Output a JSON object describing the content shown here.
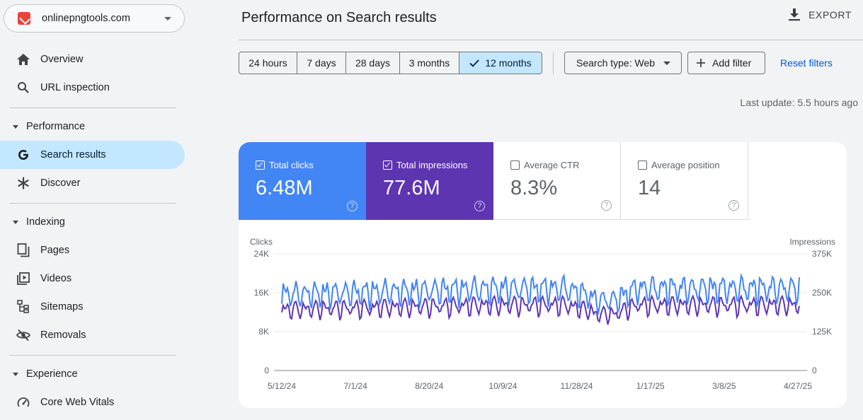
{
  "property": {
    "name": "onlinepngtools.com"
  },
  "sidebar": {
    "overview": "Overview",
    "url_inspection": "URL inspection",
    "performance_header": "Performance",
    "search_results": "Search results",
    "discover": "Discover",
    "indexing_header": "Indexing",
    "pages": "Pages",
    "videos": "Videos",
    "sitemaps": "Sitemaps",
    "removals": "Removals",
    "experience_header": "Experience",
    "core_web_vitals": "Core Web Vitals"
  },
  "header": {
    "title": "Performance on Search results",
    "export_label": "EXPORT"
  },
  "filters": {
    "ranges": [
      "24 hours",
      "7 days",
      "28 days",
      "3 months",
      "12 months"
    ],
    "selected_range": "12 months",
    "search_type": "Search type: Web",
    "add_filter": "Add filter",
    "reset": "Reset filters",
    "last_update": "Last update: 5.5 hours ago"
  },
  "metrics": {
    "clicks": {
      "label": "Total clicks",
      "value": "6.48M",
      "checked": true,
      "color": "#4285f4"
    },
    "impressions": {
      "label": "Total impressions",
      "value": "77.6M",
      "checked": true,
      "color": "#5e35b1"
    },
    "ctr": {
      "label": "Average CTR",
      "value": "8.3%",
      "checked": false
    },
    "position": {
      "label": "Average position",
      "value": "14",
      "checked": false
    }
  },
  "chart_data": {
    "type": "line",
    "left_axis": {
      "label": "Clicks",
      "ticks": [
        "24K",
        "16K",
        "8K",
        "0"
      ],
      "range": [
        0,
        24000
      ]
    },
    "right_axis": {
      "label": "Impressions",
      "ticks": [
        "375K",
        "250K",
        "125K",
        "0"
      ],
      "range": [
        0,
        375000
      ]
    },
    "x_ticks": [
      "5/12/24",
      "7/1/24",
      "8/20/24",
      "10/9/24",
      "11/28/24",
      "1/17/25",
      "3/8/25",
      "4/27/25"
    ],
    "x_range": [
      "2024-05-12",
      "2025-05-12"
    ],
    "series": [
      {
        "name": "Total clicks",
        "axis": "left",
        "color": "#4285f4",
        "weekly_peak": 19000,
        "weekly_trough": 11000
      },
      {
        "name": "Total impressions",
        "axis": "right",
        "color": "#5e35b1",
        "weekly_peak": 232000,
        "weekly_trough": 150000
      }
    ],
    "grid": true
  }
}
